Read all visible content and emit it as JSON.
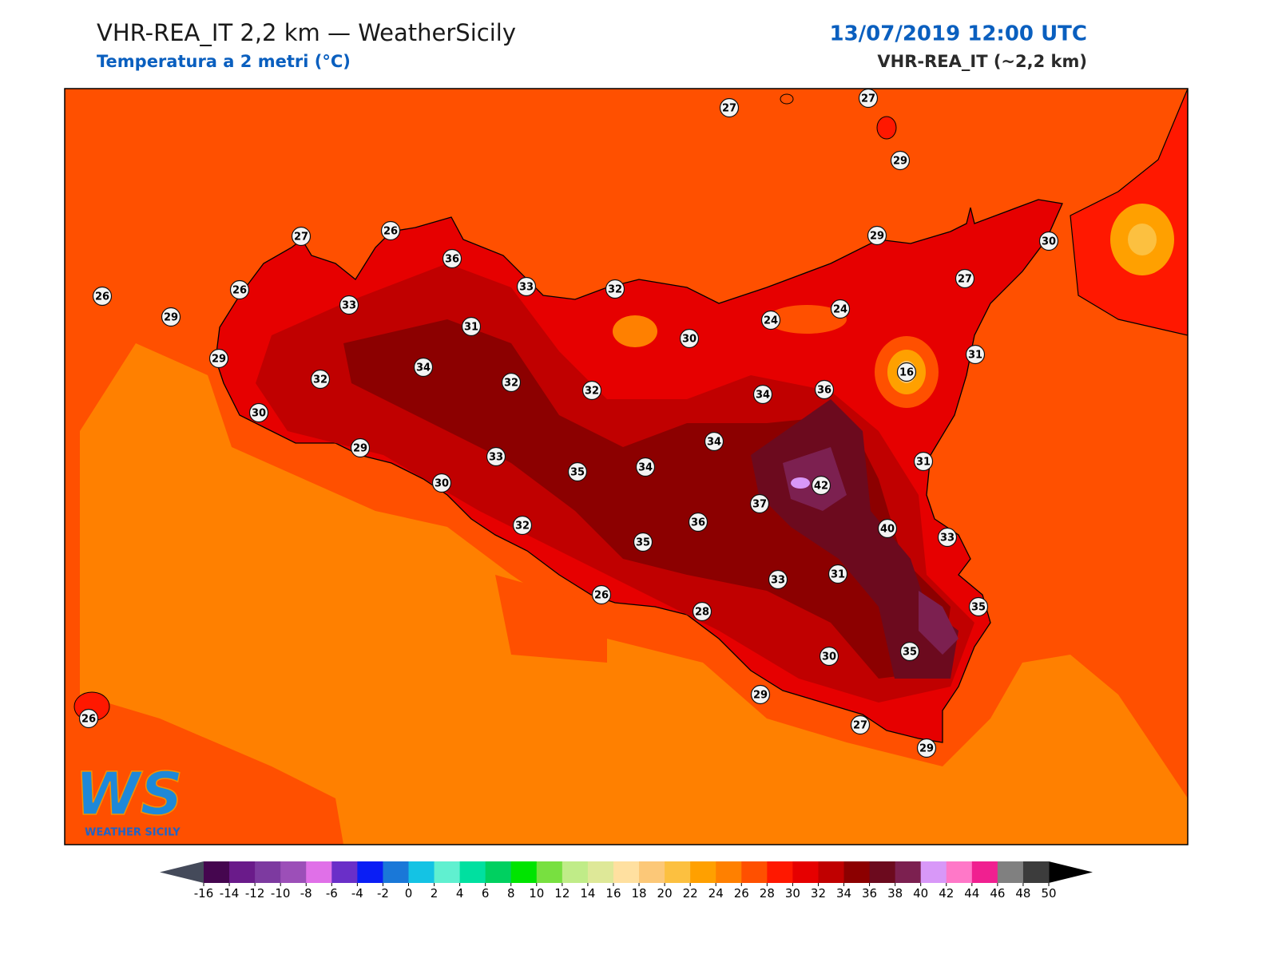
{
  "header": {
    "title": "VHR-REA_IT 2,2 km — WeatherSicily",
    "subtitle": "Temperatura a 2 metri (°C)",
    "date": "13/07/2019 12:00 UTC",
    "model": "VHR-REA_IT (~2,2 km)"
  },
  "stations": [
    27,
    27,
    29,
    27,
    26,
    36,
    26,
    26,
    29,
    33,
    33,
    32,
    29,
    30,
    27,
    31,
    30,
    24,
    24,
    29,
    32,
    34,
    32,
    32,
    31,
    16,
    34,
    36,
    30,
    29,
    33,
    34,
    35,
    34,
    31,
    30,
    42,
    37,
    32,
    36,
    40,
    33,
    35,
    31,
    33,
    26,
    28,
    35,
    35,
    30,
    29,
    27,
    29,
    26
  ],
  "colorbar": {
    "ticks": [
      -16,
      -14,
      -12,
      -10,
      -8,
      -6,
      -4,
      -2,
      0,
      2,
      4,
      6,
      8,
      10,
      12,
      14,
      16,
      18,
      20,
      22,
      24,
      26,
      28,
      30,
      32,
      34,
      36,
      38,
      40,
      42,
      44,
      46,
      48,
      50
    ],
    "colors": [
      "#45064f",
      "#6a1b8a",
      "#7d3aa0",
      "#9c4fb8",
      "#e070e8",
      "#6a2fc8",
      "#0a1ef5",
      "#1a78d8",
      "#14c3e4",
      "#60f0d0",
      "#00e0a0",
      "#00d060",
      "#00e400",
      "#78e040",
      "#c0ec88",
      "#dee898",
      "#ffe0a0",
      "#fcc878",
      "#fcc040",
      "#ffa000",
      "#ff8000",
      "#ff5000",
      "#ff1800",
      "#e60000",
      "#c00000",
      "#8c0000",
      "#6c0a1e",
      "#7c2050",
      "#d898f8",
      "#ff78c8",
      "#f02090",
      "#808080",
      "#3c3c3c"
    ],
    "under_color": "#444a5a",
    "over_color": "#000000"
  },
  "logo": {
    "text": "WS",
    "caption": "WEATHER SICILY"
  }
}
